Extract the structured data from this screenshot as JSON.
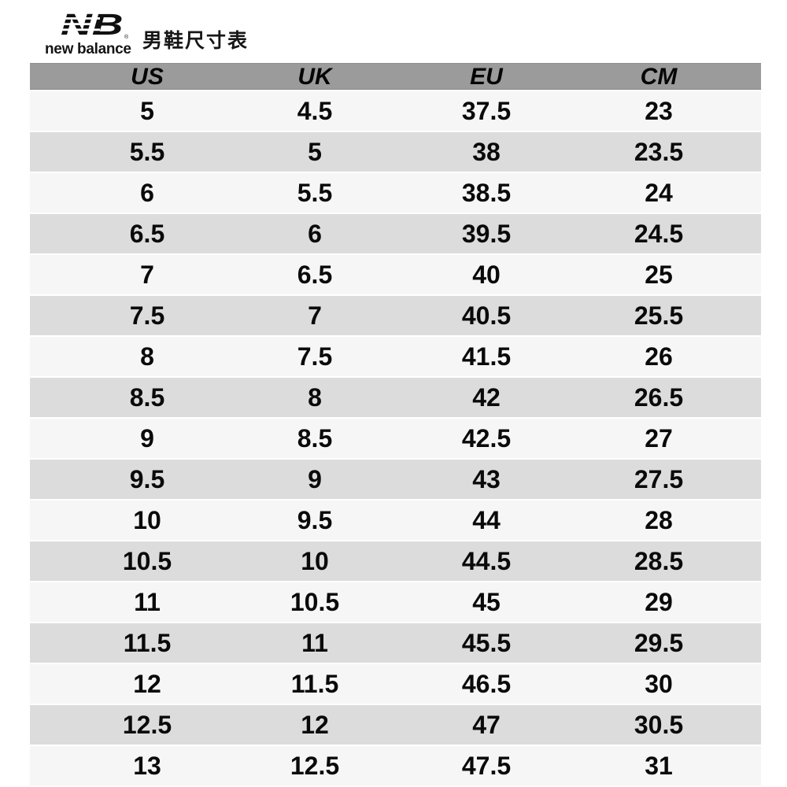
{
  "brand": {
    "mark": "NB",
    "wordmark": "new balance",
    "registered": "®"
  },
  "title": "男鞋尺寸表",
  "table": {
    "columns": [
      "US",
      "UK",
      "EU",
      "CM"
    ],
    "rows": [
      [
        "5",
        "4.5",
        "37.5",
        "23"
      ],
      [
        "5.5",
        "5",
        "38",
        "23.5"
      ],
      [
        "6",
        "5.5",
        "38.5",
        "24"
      ],
      [
        "6.5",
        "6",
        "39.5",
        "24.5"
      ],
      [
        "7",
        "6.5",
        "40",
        "25"
      ],
      [
        "7.5",
        "7",
        "40.5",
        "25.5"
      ],
      [
        "8",
        "7.5",
        "41.5",
        "26"
      ],
      [
        "8.5",
        "8",
        "42",
        "26.5"
      ],
      [
        "9",
        "8.5",
        "42.5",
        "27"
      ],
      [
        "9.5",
        "9",
        "43",
        "27.5"
      ],
      [
        "10",
        "9.5",
        "44",
        "28"
      ],
      [
        "10.5",
        "10",
        "44.5",
        "28.5"
      ],
      [
        "11",
        "10.5",
        "45",
        "29"
      ],
      [
        "11.5",
        "11",
        "45.5",
        "29.5"
      ],
      [
        "12",
        "11.5",
        "46.5",
        "30"
      ],
      [
        "12.5",
        "12",
        "47",
        "30.5"
      ],
      [
        "13",
        "12.5",
        "47.5",
        "31"
      ]
    ]
  },
  "colors": {
    "header_bg": "#9b9b9b",
    "row_light": "#f6f6f6",
    "row_dark": "#dcdcdc",
    "text": "#000000",
    "background": "#ffffff"
  }
}
